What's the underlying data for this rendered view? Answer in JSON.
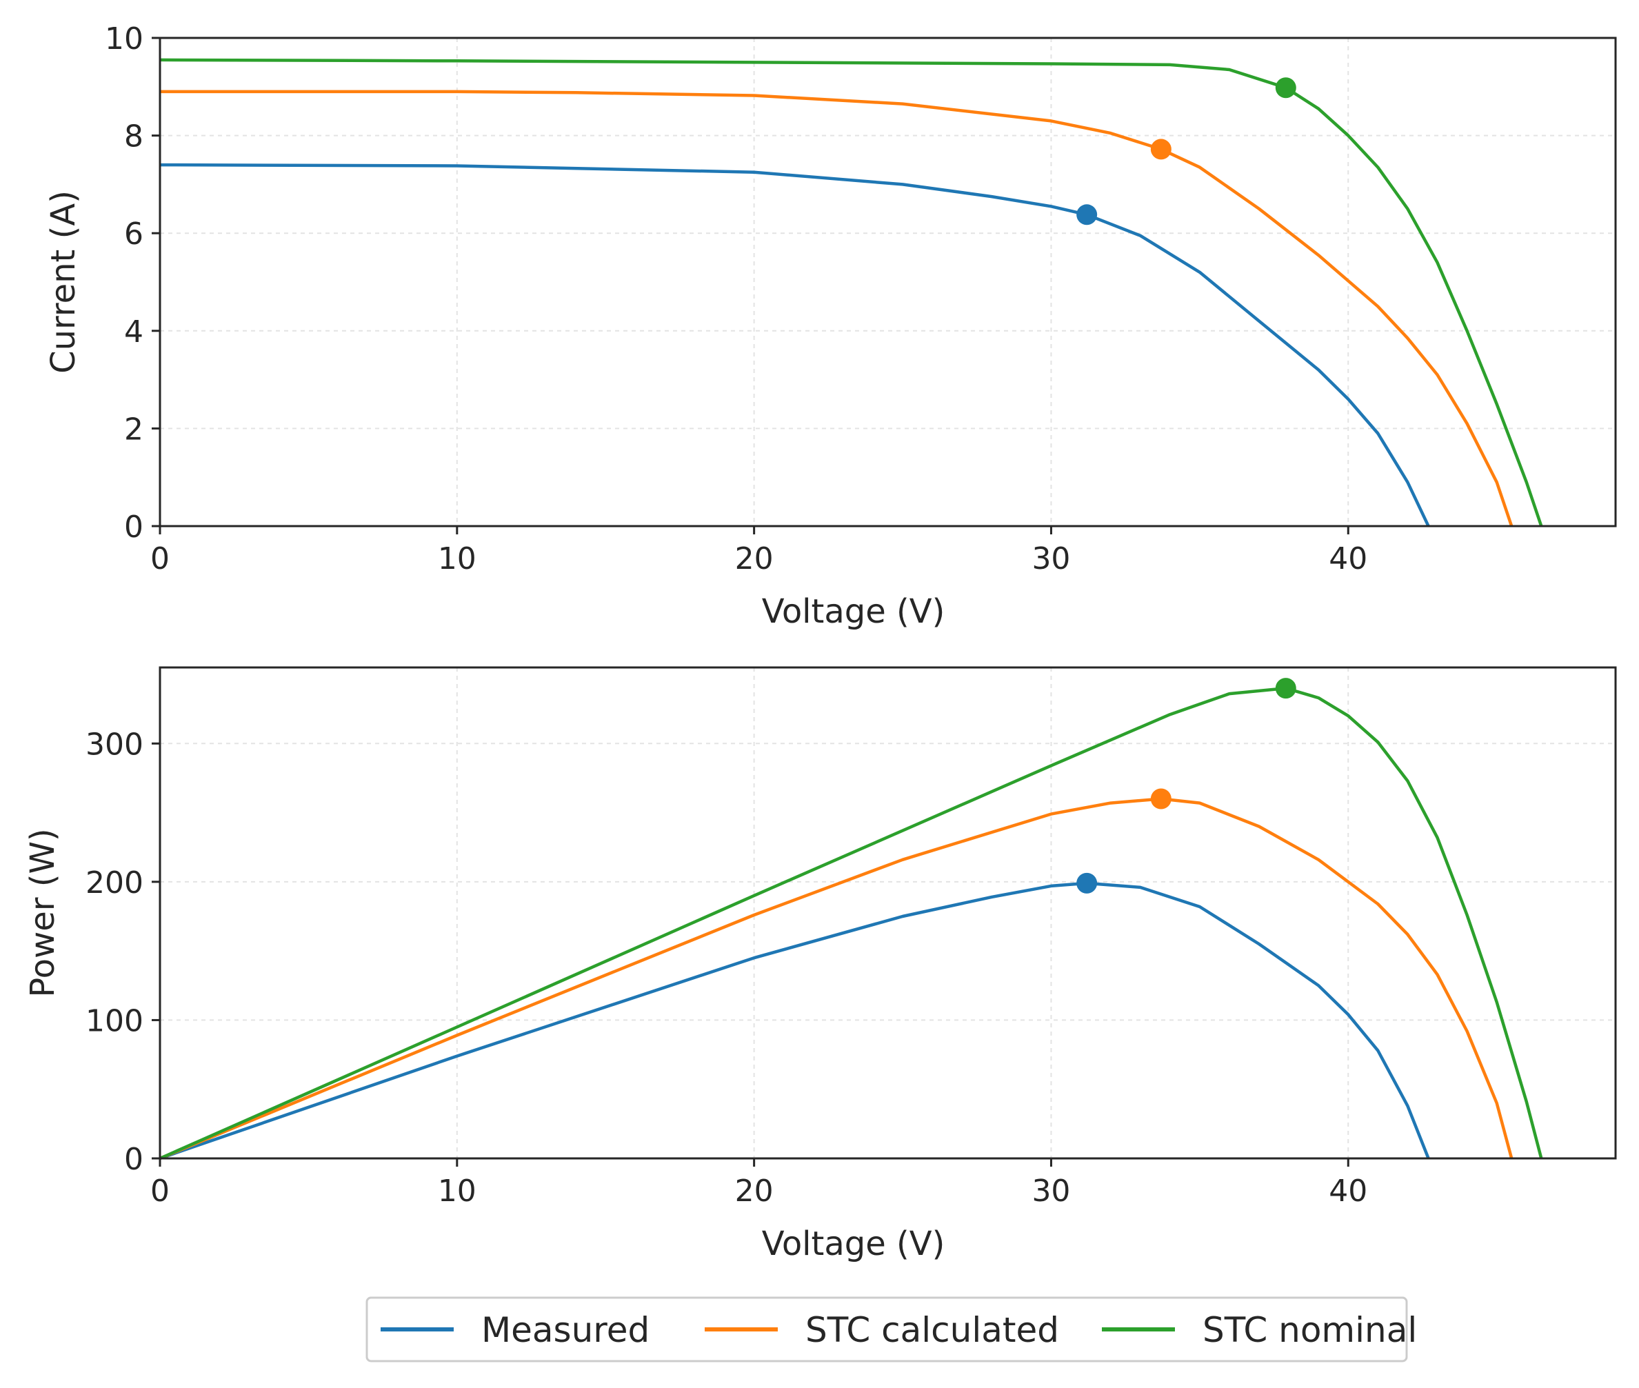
{
  "chart_data": [
    {
      "type": "line",
      "xlabel": "Voltage (V)",
      "ylabel": "Current (A)",
      "xlim": [
        0,
        49
      ],
      "ylim": [
        0,
        10
      ],
      "xticks": [
        0,
        10,
        20,
        30,
        40
      ],
      "yticks": [
        0,
        2,
        4,
        6,
        8,
        10
      ],
      "grid": true,
      "series": [
        {
          "name": "Measured",
          "color": "#1f77b4",
          "x": [
            0,
            10,
            20,
            25,
            28,
            30,
            31.2,
            33,
            35,
            37,
            39,
            40,
            41,
            42,
            42.7
          ],
          "y": [
            7.4,
            7.38,
            7.25,
            7.0,
            6.75,
            6.55,
            6.38,
            5.95,
            5.2,
            4.2,
            3.2,
            2.6,
            1.9,
            0.9,
            0
          ],
          "mpp": {
            "x": 31.2,
            "y": 6.38
          }
        },
        {
          "name": "STC calculated",
          "color": "#ff7f0e",
          "x": [
            0,
            10,
            14,
            20,
            25,
            30,
            32,
            33.7,
            35,
            37,
            39,
            41,
            42,
            43,
            44,
            45,
            45.5
          ],
          "y": [
            8.9,
            8.9,
            8.88,
            8.82,
            8.65,
            8.3,
            8.05,
            7.72,
            7.35,
            6.5,
            5.55,
            4.5,
            3.85,
            3.1,
            2.1,
            0.9,
            0
          ],
          "mpp": {
            "x": 33.7,
            "y": 7.72
          }
        },
        {
          "name": "STC nominal",
          "color": "#2ca02c",
          "x": [
            0,
            10,
            20,
            30,
            34,
            36,
            37.9,
            39,
            40,
            41,
            42,
            43,
            44,
            45,
            46,
            46.5
          ],
          "y": [
            9.55,
            9.53,
            9.5,
            9.47,
            9.45,
            9.35,
            8.98,
            8.55,
            8.0,
            7.35,
            6.5,
            5.4,
            4.0,
            2.5,
            0.9,
            0
          ],
          "mpp": {
            "x": 37.9,
            "y": 8.98
          }
        }
      ]
    },
    {
      "type": "line",
      "xlabel": "Voltage (V)",
      "ylabel": "Power (W)",
      "xlim": [
        0,
        49
      ],
      "ylim": [
        0,
        355
      ],
      "xticks": [
        0,
        10,
        20,
        30,
        40
      ],
      "yticks": [
        0,
        100,
        200,
        300
      ],
      "grid": true,
      "series": [
        {
          "name": "Measured",
          "color": "#1f77b4",
          "x": [
            0,
            10,
            20,
            25,
            28,
            30,
            31.2,
            33,
            35,
            37,
            39,
            40,
            41,
            42,
            42.7
          ],
          "y": [
            0,
            74,
            145,
            175,
            189,
            197,
            199,
            196,
            182,
            155,
            125,
            104,
            78,
            38,
            0
          ],
          "mpp": {
            "x": 31.2,
            "y": 199
          }
        },
        {
          "name": "STC calculated",
          "color": "#ff7f0e",
          "x": [
            0,
            10,
            20,
            25,
            30,
            32,
            33.7,
            35,
            37,
            39,
            41,
            42,
            43,
            44,
            45,
            45.5
          ],
          "y": [
            0,
            89,
            176,
            216,
            249,
            257,
            260,
            257,
            240,
            216,
            184,
            162,
            133,
            92,
            40,
            0
          ],
          "mpp": {
            "x": 33.7,
            "y": 260
          }
        },
        {
          "name": "STC nominal",
          "color": "#2ca02c",
          "x": [
            0,
            10,
            20,
            30,
            34,
            36,
            37.9,
            39,
            40,
            41,
            42,
            43,
            44,
            45,
            46,
            46.5
          ],
          "y": [
            0,
            95,
            190,
            284,
            321,
            336,
            340,
            333,
            320,
            301,
            273,
            232,
            176,
            113,
            41,
            0
          ],
          "mpp": {
            "x": 37.9,
            "y": 340
          }
        }
      ]
    }
  ],
  "legend": {
    "entries": [
      {
        "label": "Measured",
        "color": "#1f77b4"
      },
      {
        "label": "STC calculated",
        "color": "#ff7f0e"
      },
      {
        "label": "STC nominal",
        "color": "#2ca02c"
      }
    ]
  }
}
